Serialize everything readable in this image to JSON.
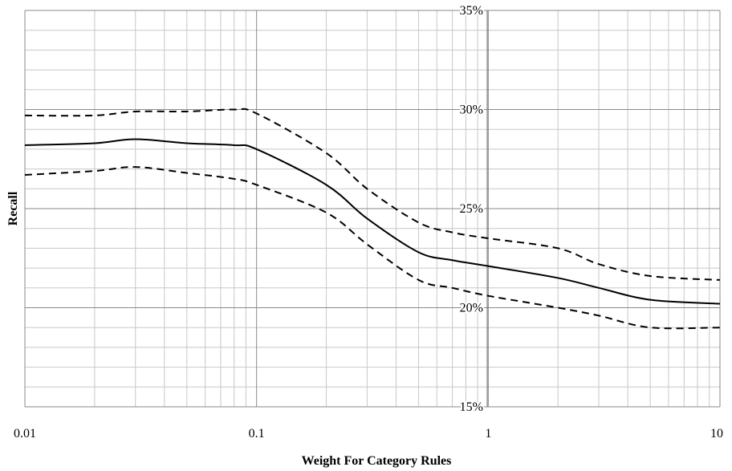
{
  "chart_data": {
    "type": "line",
    "title": "",
    "xlabel": "Weight For Category Rules",
    "ylabel": "Recall",
    "x_scale": "log",
    "xlim": [
      0.01,
      10
    ],
    "ylim": [
      0.15,
      0.35
    ],
    "x_ticks": [
      "0.01",
      "0.1",
      "1",
      "10"
    ],
    "y_ticks": [
      "15%",
      "20%",
      "25%",
      "30%",
      "35%"
    ],
    "y_tick_values": [
      0.15,
      0.2,
      0.25,
      0.3,
      0.35
    ],
    "grid": true,
    "legend": "none",
    "series": [
      {
        "style": "dashed",
        "color": "#000000",
        "x": [
          0.01,
          0.02,
          0.03,
          0.05,
          0.08,
          0.1,
          0.2,
          0.3,
          0.5,
          0.7,
          1,
          2,
          3,
          5,
          10
        ],
        "y": [
          0.297,
          0.297,
          0.299,
          0.299,
          0.3,
          0.298,
          0.278,
          0.26,
          0.243,
          0.238,
          0.235,
          0.23,
          0.222,
          0.216,
          0.214
        ]
      },
      {
        "style": "solid",
        "color": "#000000",
        "x": [
          0.01,
          0.02,
          0.03,
          0.05,
          0.08,
          0.1,
          0.2,
          0.3,
          0.5,
          0.7,
          1,
          2,
          3,
          5,
          10
        ],
        "y": [
          0.282,
          0.283,
          0.285,
          0.283,
          0.282,
          0.28,
          0.262,
          0.245,
          0.228,
          0.224,
          0.221,
          0.215,
          0.21,
          0.204,
          0.202
        ]
      },
      {
        "style": "dashed",
        "color": "#000000",
        "x": [
          0.01,
          0.02,
          0.03,
          0.05,
          0.08,
          0.1,
          0.2,
          0.3,
          0.5,
          0.7,
          1,
          2,
          3,
          5,
          10
        ],
        "y": [
          0.267,
          0.269,
          0.271,
          0.268,
          0.265,
          0.262,
          0.248,
          0.232,
          0.214,
          0.21,
          0.206,
          0.2,
          0.196,
          0.19,
          0.19
        ]
      }
    ]
  }
}
